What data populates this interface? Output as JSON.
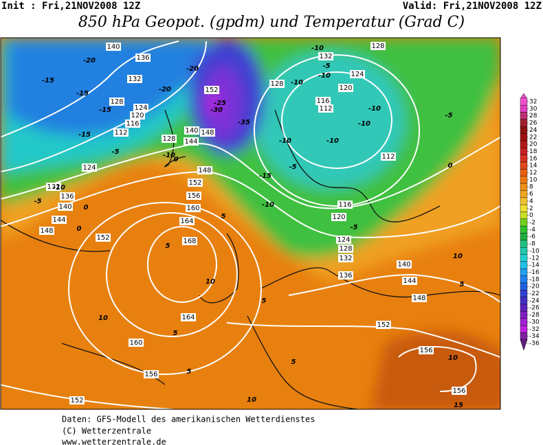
{
  "header": {
    "init": "Init : Fri,21NOV2008 12Z",
    "valid": "Valid: Fri,21NOV2008 12Z",
    "title": "850 hPa Geopot. (gpdm) und Temperatur (Grad C)"
  },
  "map": {
    "contour_labels": [
      "140",
      "136",
      "132",
      "128",
      "124",
      "120",
      "116",
      "112",
      "124",
      "132",
      "136",
      "140",
      "144",
      "148",
      "152",
      "148",
      "152",
      "156",
      "160",
      "164",
      "168",
      "164",
      "160",
      "156",
      "152",
      "152",
      "156",
      "156",
      "140",
      "144",
      "148",
      "136",
      "132",
      "128",
      "124",
      "120",
      "116",
      "112",
      "112",
      "116",
      "120",
      "124",
      "128",
      "132",
      "128",
      "140",
      "144",
      "128",
      "152",
      "148"
    ],
    "temperature_labels": [
      "-20",
      "-15",
      "-15",
      "-15",
      "-15",
      "-5",
      "-10",
      "-5",
      "0",
      "0",
      "5",
      "5",
      "10",
      "10",
      "5",
      "5",
      "10",
      "5",
      "5",
      "10",
      "5",
      "10",
      "0",
      "-5",
      "-10",
      "-10",
      "-10",
      "-10",
      "-15",
      "-5",
      "-10",
      "-5",
      "-10",
      "-10",
      "-10",
      "-5",
      "-20",
      "-20",
      "-25",
      "-30",
      "-35",
      "-10",
      "0",
      "15"
    ]
  },
  "colorbar": {
    "ticks": [
      32,
      30,
      28,
      26,
      24,
      22,
      20,
      18,
      16,
      14,
      12,
      10,
      8,
      6,
      4,
      2,
      0,
      -2,
      -4,
      -6,
      -8,
      -10,
      -12,
      -14,
      -16,
      -18,
      -20,
      -22,
      -24,
      -26,
      -28,
      -30,
      -32,
      -34,
      -36
    ],
    "colors": [
      "#f050d0",
      "#e040c0",
      "#c03070",
      "#a02030",
      "#8b1010",
      "#a01010",
      "#b01818",
      "#c82020",
      "#d83020",
      "#e04818",
      "#e86010",
      "#f07810",
      "#f09018",
      "#f0a820",
      "#f0c030",
      "#f0e030",
      "#c8e020",
      "#70d020",
      "#30c030",
      "#20b040",
      "#20c080",
      "#20c8b0",
      "#20d0d0",
      "#20c0e8",
      "#20a0f0",
      "#2080f0",
      "#2060e0",
      "#3040d0",
      "#4030c0",
      "#6020c0",
      "#8020c0",
      "#a020d0",
      "#c020e0",
      "#8020a0",
      "#602080"
    ]
  },
  "footer": {
    "lines": [
      "Daten: GFS-Modell des amerikanischen Wetterdienstes",
      "(C) Wetterzentrale",
      "www.wetterzentrale.de"
    ]
  }
}
